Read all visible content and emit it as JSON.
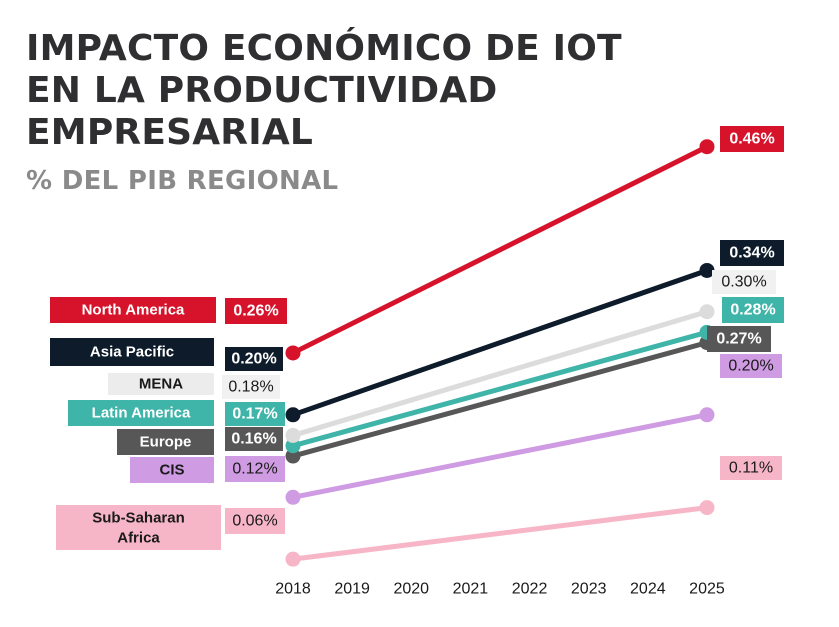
{
  "title_lines": [
    "IMPACTO ECONÓMICO DE IOT",
    "EN LA PRODUCTIVIDAD",
    "EMPRESARIAL"
  ],
  "subtitle": "% DEL PIB REGIONAL",
  "chart_data": {
    "type": "line",
    "x": [
      2018,
      2019,
      2020,
      2021,
      2022,
      2023,
      2024,
      2025
    ],
    "x_tick_labels": [
      "2018",
      "2019",
      "2020",
      "2021",
      "2022",
      "2023",
      "2024",
      "2025"
    ],
    "unit": "% del PIB regional",
    "grid": false,
    "legend": "left, labels at start of each line",
    "series": [
      {
        "name": "North America",
        "color": "#d7132b",
        "points": [
          [
            2018,
            0.26
          ],
          [
            2025,
            0.46
          ]
        ],
        "label_start": "0.26%",
        "label_end": "0.46%",
        "label_style": "filled",
        "label_text_color": "#ffffff"
      },
      {
        "name": "Asia Pacific",
        "color": "#0d1b2a",
        "points": [
          [
            2018,
            0.2
          ],
          [
            2025,
            0.34
          ]
        ],
        "label_start": "0.20%",
        "label_end": "0.34%",
        "label_style": "filled",
        "label_text_color": "#ffffff"
      },
      {
        "name": "MENA",
        "color": "#dcdcdc",
        "points": [
          [
            2018,
            0.18
          ],
          [
            2025,
            0.3
          ]
        ],
        "label_start": "0.18%",
        "label_end": "0.30%",
        "label_style": "light",
        "label_text_color": "#1a1a1a"
      },
      {
        "name": "Latin America",
        "color": "#3fb4a8",
        "points": [
          [
            2018,
            0.17
          ],
          [
            2025,
            0.28
          ]
        ],
        "label_start": "0.17%",
        "label_end": "0.28%",
        "label_style": "filled",
        "label_text_color": "#ffffff"
      },
      {
        "name": "Europe",
        "color": "#575757",
        "points": [
          [
            2018,
            0.16
          ],
          [
            2025,
            0.27
          ]
        ],
        "label_start": "0.16%",
        "label_end": "0.27%",
        "label_style": "filled",
        "label_text_color": "#ffffff"
      },
      {
        "name": "CIS",
        "color": "#cf9be2",
        "points": [
          [
            2018,
            0.12
          ],
          [
            2025,
            0.2
          ]
        ],
        "label_start": "0.12%",
        "label_end": "0.20%",
        "label_style": "light",
        "label_text_color": "#1a1a1a"
      },
      {
        "name": "Sub-Saharan Africa",
        "name_lines": [
          "Sub-Saharan",
          "Africa"
        ],
        "color": "#f7b6c7",
        "points": [
          [
            2018,
            0.06
          ],
          [
            2025,
            0.11
          ]
        ],
        "label_start": "0.06%",
        "label_end": "0.11%",
        "label_style": "light",
        "label_text_color": "#1a1a1a"
      }
    ]
  }
}
